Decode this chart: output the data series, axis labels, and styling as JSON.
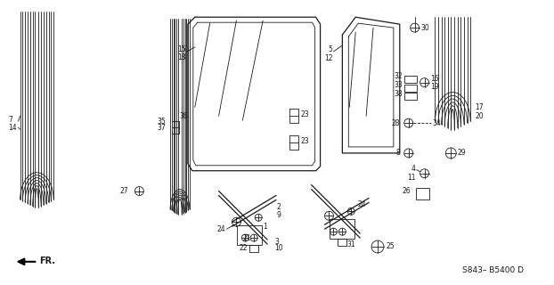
{
  "bg_color": "#ffffff",
  "diagram_ref": "S843– B5400 D",
  "fr_label": "FR.",
  "line_color": "#1a1a1a",
  "label_fontsize": 5.5,
  "ref_fontsize": 6.5
}
